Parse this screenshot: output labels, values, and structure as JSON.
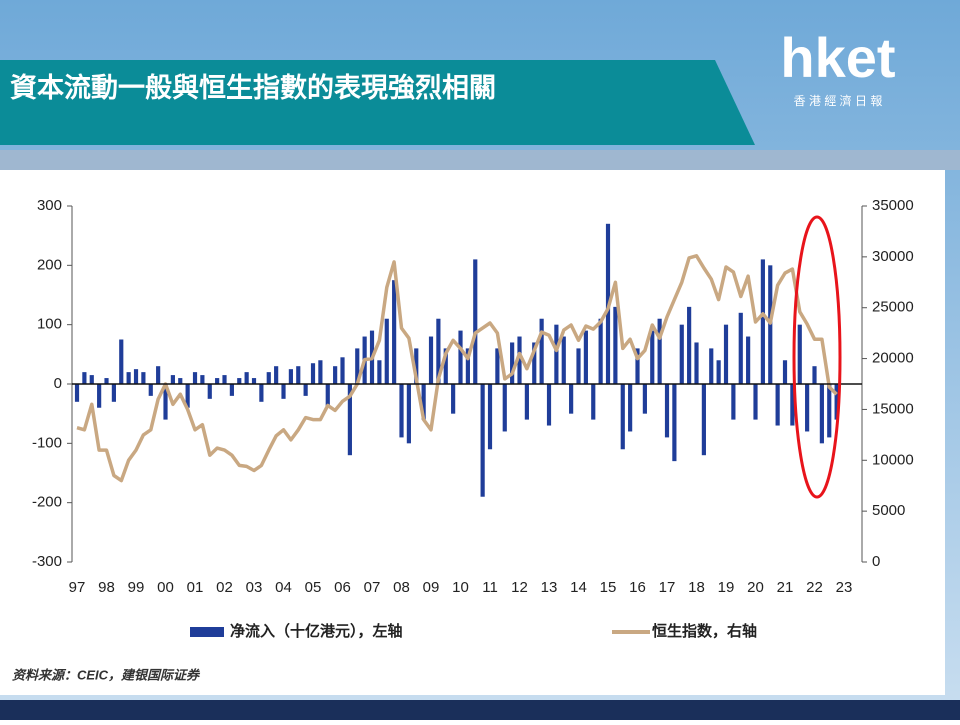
{
  "chart_data": {
    "type": "bar",
    "title": "資本流動一般與恒生指數的表現強烈相關",
    "logo_text": "hket",
    "logo_subtitle": "香 港 經 濟 日 報",
    "source": "资料来源：CEIC，建银国际证券",
    "xlim": [
      1996.83,
      2023.61
    ],
    "xticks": [
      {
        "value": 1997,
        "label": "97"
      },
      {
        "value": 1998,
        "label": "98"
      },
      {
        "value": 1999,
        "label": "99"
      },
      {
        "value": 2000,
        "label": "00"
      },
      {
        "value": 2001,
        "label": "01"
      },
      {
        "value": 2002,
        "label": "02"
      },
      {
        "value": 2003,
        "label": "03"
      },
      {
        "value": 2004,
        "label": "04"
      },
      {
        "value": 2005,
        "label": "05"
      },
      {
        "value": 2006,
        "label": "06"
      },
      {
        "value": 2007,
        "label": "07"
      },
      {
        "value": 2008,
        "label": "08"
      },
      {
        "value": 2009,
        "label": "09"
      },
      {
        "value": 2010,
        "label": "10"
      },
      {
        "value": 2011,
        "label": "11"
      },
      {
        "value": 2012,
        "label": "12"
      },
      {
        "value": 2013,
        "label": "13"
      },
      {
        "value": 2014,
        "label": "14"
      },
      {
        "value": 2015,
        "label": "15"
      },
      {
        "value": 2016,
        "label": "16"
      },
      {
        "value": 2017,
        "label": "17"
      },
      {
        "value": 2018,
        "label": "18"
      },
      {
        "value": 2019,
        "label": "19"
      },
      {
        "value": 2020,
        "label": "20"
      },
      {
        "value": 2021,
        "label": "21"
      },
      {
        "value": 2022,
        "label": "22"
      },
      {
        "value": 2023,
        "label": "23"
      }
    ],
    "ylim": [
      -300,
      300
    ],
    "yticks": [
      -300,
      -200,
      -100,
      0,
      100,
      200,
      300
    ],
    "y2lim": [
      0,
      35000
    ],
    "y2ticks": [
      0,
      5000,
      10000,
      15000,
      20000,
      25000,
      30000,
      35000
    ],
    "x": [
      1997,
      1997.25,
      1997.5,
      1997.75,
      1998,
      1998.25,
      1998.5,
      1998.75,
      1999,
      1999.25,
      1999.5,
      1999.75,
      2000,
      2000.25,
      2000.5,
      2000.75,
      2001,
      2001.25,
      2001.5,
      2001.75,
      2002,
      2002.25,
      2002.5,
      2002.75,
      2003,
      2003.25,
      2003.5,
      2003.75,
      2004,
      2004.25,
      2004.5,
      2004.75,
      2005,
      2005.25,
      2005.5,
      2005.75,
      2006,
      2006.25,
      2006.5,
      2006.75,
      2007,
      2007.25,
      2007.5,
      2007.75,
      2008,
      2008.25,
      2008.5,
      2008.75,
      2009,
      2009.25,
      2009.5,
      2009.75,
      2010,
      2010.25,
      2010.5,
      2010.75,
      2011,
      2011.25,
      2011.5,
      2011.75,
      2012,
      2012.25,
      2012.5,
      2012.75,
      2013,
      2013.25,
      2013.5,
      2013.75,
      2014,
      2014.25,
      2014.5,
      2014.75,
      2015,
      2015.25,
      2015.5,
      2015.75,
      2016,
      2016.25,
      2016.5,
      2016.75,
      2017,
      2017.25,
      2017.5,
      2017.75,
      2018,
      2018.25,
      2018.5,
      2018.75,
      2019,
      2019.25,
      2019.5,
      2019.75,
      2020,
      2020.25,
      2020.5,
      2020.75,
      2021,
      2021.25,
      2021.5,
      2021.75,
      2022,
      2022.25,
      2022.5,
      2022.75
    ],
    "series": [
      {
        "name": "净流入（十亿港元），左轴",
        "type": "bar",
        "color": "#1f3d99",
        "values": [
          -30,
          20,
          15,
          -40,
          10,
          -30,
          75,
          20,
          25,
          20,
          -20,
          30,
          -60,
          15,
          10,
          -40,
          20,
          15,
          -25,
          10,
          15,
          -20,
          10,
          20,
          10,
          -30,
          20,
          30,
          -25,
          25,
          30,
          -20,
          35,
          40,
          -40,
          30,
          45,
          -120,
          60,
          80,
          90,
          40,
          110,
          175,
          -90,
          -100,
          60,
          -60,
          80,
          110,
          60,
          -50,
          90,
          60,
          210,
          -190,
          -110,
          60,
          -80,
          70,
          80,
          -60,
          70,
          110,
          -70,
          100,
          80,
          -50,
          60,
          90,
          -60,
          110,
          270,
          130,
          -110,
          -80,
          60,
          -50,
          90,
          110,
          -90,
          -130,
          100,
          130,
          70,
          -120,
          60,
          40,
          100,
          -60,
          120,
          80,
          -60,
          210,
          200,
          -70,
          40,
          -70,
          100,
          -80,
          30,
          -100,
          -90,
          -60
        ]
      },
      {
        "name": "恒生指数，右轴",
        "type": "line",
        "axis": "y2",
        "color": "#c9a882",
        "values": [
          13200,
          13000,
          15500,
          11000,
          11000,
          8500,
          8000,
          10000,
          11000,
          12500,
          13000,
          16000,
          17500,
          15500,
          16500,
          15000,
          13000,
          13500,
          10500,
          11200,
          11000,
          10500,
          9500,
          9400,
          9000,
          9500,
          11000,
          12400,
          13000,
          12000,
          13000,
          14200,
          14000,
          14000,
          15400,
          14900,
          15800,
          16300,
          17500,
          19900,
          20000,
          21800,
          27000,
          29500,
          23000,
          22000,
          18000,
          14000,
          13000,
          18000,
          20500,
          21800,
          21000,
          20000,
          22500,
          23000,
          23500,
          22500,
          18000,
          18500,
          20500,
          19000,
          20800,
          22600,
          22300,
          20800,
          22800,
          23300,
          21800,
          23200,
          22900,
          23600,
          24900,
          27500,
          21000,
          21900,
          20000,
          20800,
          23300,
          22000,
          24100,
          25800,
          27500,
          29900,
          30100,
          28900,
          27800,
          25800,
          29000,
          28500,
          26100,
          28100,
          23600,
          24400,
          23500,
          27200,
          28400,
          28800,
          24600,
          23400,
          21900,
          21900,
          17200,
          16500
        ]
      }
    ]
  }
}
